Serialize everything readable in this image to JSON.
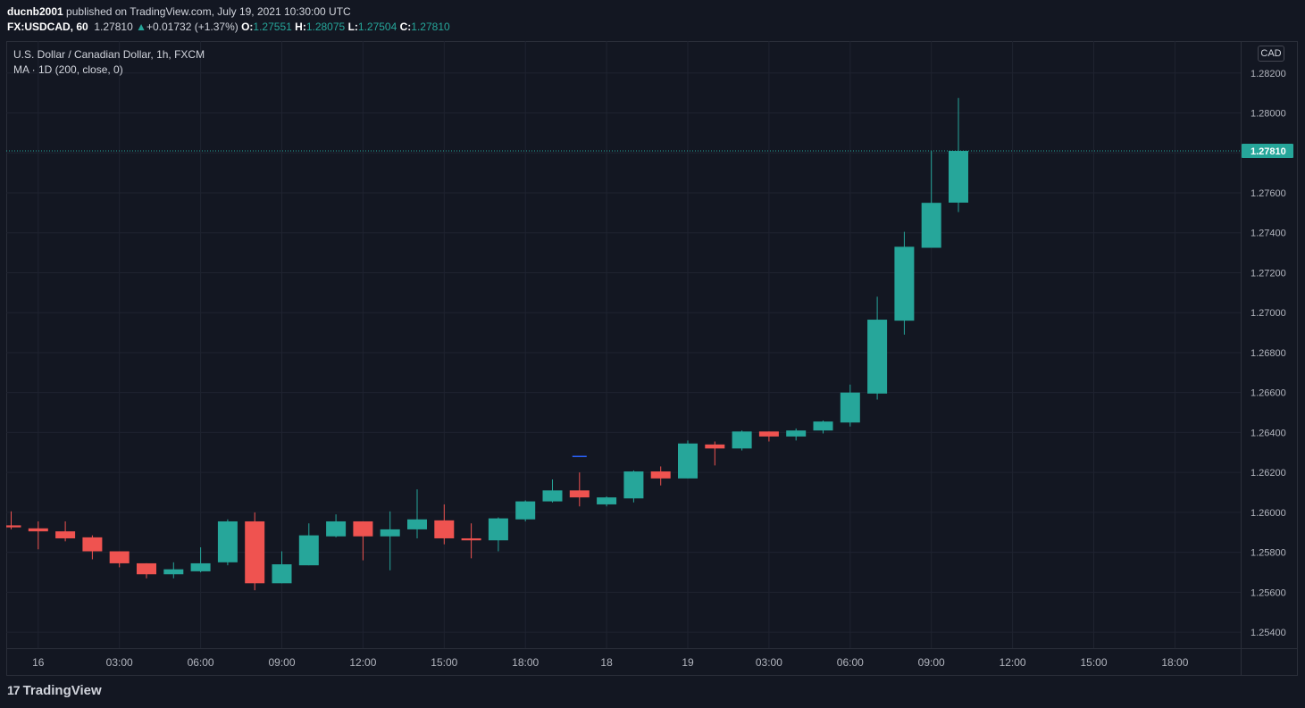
{
  "header": {
    "author": "ducnb2001",
    "published": "published on TradingView.com, July 19, 2021 10:30:00 UTC",
    "symbol": "FX:USDCAD, 60",
    "last": "1.27810",
    "change_arrow": "▲",
    "change": "+0.01732 (+1.37%)",
    "o_label": "O:",
    "o_value": "1.27551",
    "h_label": "H:",
    "h_value": "1.28075",
    "l_label": "L:",
    "l_value": "1.27504",
    "c_label": "C:",
    "c_value": "1.27810"
  },
  "legend": {
    "title": "U.S. Dollar / Canadian Dollar, 1h, FXCM",
    "indicator": "MA · 1D (200, close, 0)"
  },
  "currency_button": "CAD",
  "brand": {
    "logo": "17",
    "name": "TradingView"
  },
  "colors": {
    "background": "#131722",
    "grid": "#1f2330",
    "up": "#26a69a",
    "down": "#ef5350",
    "ma": "#2962ff",
    "text": "#d1d4dc"
  },
  "chart_data": {
    "type": "candlestick",
    "symbol": "FX:USDCAD",
    "interval": "1h",
    "ylim": [
      1.2532,
      1.2836
    ],
    "yticks": [
      "1.28200",
      "1.28000",
      "1.27800",
      "1.27600",
      "1.27400",
      "1.27200",
      "1.27000",
      "1.26800",
      "1.26600",
      "1.26400",
      "1.26200",
      "1.26000",
      "1.25800",
      "1.25600",
      "1.25400"
    ],
    "ytick_values": [
      1.282,
      1.28,
      1.278,
      1.276,
      1.274,
      1.272,
      1.27,
      1.268,
      1.266,
      1.264,
      1.262,
      1.26,
      1.258,
      1.256,
      1.254
    ],
    "xtick_labels": [
      "16",
      "03:00",
      "06:00",
      "09:00",
      "12:00",
      "15:00",
      "18:00",
      "18",
      "19",
      "03:00",
      "06:00",
      "09:00",
      "12:00",
      "15:00",
      "18:00"
    ],
    "xtick_slots": [
      1,
      4,
      7,
      10,
      13,
      16,
      19,
      22,
      25,
      28,
      31,
      34,
      37,
      40,
      43
    ],
    "last_price": {
      "value": 1.2781,
      "label": "1.27810"
    },
    "ma_segment": {
      "value": 1.2628,
      "slot": 21
    },
    "candles": [
      {
        "o": 1.25935,
        "h": 1.26005,
        "l": 1.25915,
        "c": 1.25925
      },
      {
        "o": 1.2592,
        "h": 1.25955,
        "l": 1.25815,
        "c": 1.25905
      },
      {
        "o": 1.25905,
        "h": 1.25955,
        "l": 1.25855,
        "c": 1.2587
      },
      {
        "o": 1.25875,
        "h": 1.25885,
        "l": 1.25765,
        "c": 1.25805
      },
      {
        "o": 1.25805,
        "h": 1.25805,
        "l": 1.25725,
        "c": 1.25745
      },
      {
        "o": 1.25745,
        "h": 1.25745,
        "l": 1.2567,
        "c": 1.2569
      },
      {
        "o": 1.2569,
        "h": 1.2575,
        "l": 1.2567,
        "c": 1.25715
      },
      {
        "o": 1.25705,
        "h": 1.25825,
        "l": 1.257,
        "c": 1.25745
      },
      {
        "o": 1.2575,
        "h": 1.25965,
        "l": 1.25735,
        "c": 1.25955
      },
      {
        "o": 1.25955,
        "h": 1.26,
        "l": 1.2561,
        "c": 1.25645
      },
      {
        "o": 1.25645,
        "h": 1.25805,
        "l": 1.25645,
        "c": 1.2574
      },
      {
        "o": 1.25735,
        "h": 1.25945,
        "l": 1.25735,
        "c": 1.25885
      },
      {
        "o": 1.2588,
        "h": 1.2599,
        "l": 1.25875,
        "c": 1.25955
      },
      {
        "o": 1.25955,
        "h": 1.25955,
        "l": 1.2576,
        "c": 1.2588
      },
      {
        "o": 1.2588,
        "h": 1.26005,
        "l": 1.2571,
        "c": 1.25915
      },
      {
        "o": 1.25915,
        "h": 1.26115,
        "l": 1.2587,
        "c": 1.25965
      },
      {
        "o": 1.2596,
        "h": 1.2604,
        "l": 1.2584,
        "c": 1.2587
      },
      {
        "o": 1.2587,
        "h": 1.25945,
        "l": 1.2577,
        "c": 1.2586
      },
      {
        "o": 1.2586,
        "h": 1.25975,
        "l": 1.25805,
        "c": 1.2597
      },
      {
        "o": 1.25965,
        "h": 1.2606,
        "l": 1.25955,
        "c": 1.26055
      },
      {
        "o": 1.26055,
        "h": 1.26165,
        "l": 1.2605,
        "c": 1.2611
      },
      {
        "o": 1.2611,
        "h": 1.262,
        "l": 1.2603,
        "c": 1.26075
      },
      {
        "o": 1.2604,
        "h": 1.2608,
        "l": 1.2603,
        "c": 1.26075
      },
      {
        "o": 1.2607,
        "h": 1.2621,
        "l": 1.2605,
        "c": 1.26205
      },
      {
        "o": 1.26205,
        "h": 1.2623,
        "l": 1.26135,
        "c": 1.2617
      },
      {
        "o": 1.2617,
        "h": 1.2636,
        "l": 1.2617,
        "c": 1.26345
      },
      {
        "o": 1.2634,
        "h": 1.26355,
        "l": 1.26235,
        "c": 1.2632
      },
      {
        "o": 1.2632,
        "h": 1.2641,
        "l": 1.2631,
        "c": 1.26405
      },
      {
        "o": 1.26405,
        "h": 1.26405,
        "l": 1.26355,
        "c": 1.2638
      },
      {
        "o": 1.2638,
        "h": 1.2642,
        "l": 1.2636,
        "c": 1.2641
      },
      {
        "o": 1.2641,
        "h": 1.2646,
        "l": 1.26395,
        "c": 1.26455
      },
      {
        "o": 1.2645,
        "h": 1.2664,
        "l": 1.2643,
        "c": 1.266
      },
      {
        "o": 1.26595,
        "h": 1.2708,
        "l": 1.26565,
        "c": 1.26965
      },
      {
        "o": 1.2696,
        "h": 1.27405,
        "l": 1.2689,
        "c": 1.2733
      },
      {
        "o": 1.27325,
        "h": 1.2781,
        "l": 1.27325,
        "c": 1.2755
      },
      {
        "o": 1.27551,
        "h": 1.28075,
        "l": 1.27504,
        "c": 1.2781
      }
    ]
  }
}
